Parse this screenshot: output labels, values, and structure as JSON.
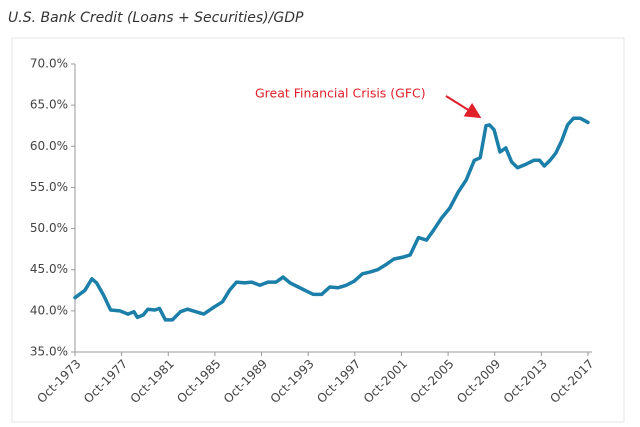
{
  "chart_data": {
    "type": "line",
    "title": "U.S. Bank Credit (Loans + Securities)/GDP",
    "annotation": "Great Financial Crisis (GFC)",
    "color": "#1b7fa9",
    "annotation_color": "#e0202a",
    "x": [
      1973.75,
      1974.6,
      1975.2,
      1975.6,
      1976.2,
      1976.8,
      1977.6,
      1978.3,
      1978.8,
      1979.1,
      1979.6,
      1980.0,
      1980.6,
      1981.0,
      1981.5,
      1982.1,
      1982.8,
      1983.4,
      1984.1,
      1984.8,
      1985.5,
      1986.4,
      1987.0,
      1987.6,
      1988.3,
      1988.9,
      1989.6,
      1990.3,
      1991.0,
      1991.6,
      1992.2,
      1992.9,
      1993.6,
      1994.2,
      1994.9,
      1995.6,
      1996.3,
      1997.0,
      1997.7,
      1998.4,
      1999.0,
      1999.7,
      2000.4,
      2001.1,
      2001.8,
      2002.5,
      2003.2,
      2003.9,
      2004.5,
      2005.2,
      2005.9,
      2006.6,
      2007.3,
      2008.0,
      2008.5,
      2009.0,
      2009.3,
      2009.7,
      2010.2,
      2010.7,
      2011.2,
      2011.7,
      2012.4,
      2013.1,
      2013.6,
      2014.0,
      2014.5,
      2015.0,
      2015.5,
      2016.0,
      2016.5,
      2017.1,
      2017.75
    ],
    "values": [
      41.6,
      42.5,
      43.9,
      43.4,
      41.9,
      40.1,
      40.0,
      39.6,
      39.9,
      39.2,
      39.5,
      40.2,
      40.1,
      40.3,
      38.9,
      38.9,
      39.9,
      40.2,
      39.9,
      39.6,
      40.3,
      41.1,
      42.5,
      43.5,
      43.4,
      43.5,
      43.1,
      43.5,
      43.5,
      44.1,
      43.4,
      42.9,
      42.4,
      42.0,
      42.0,
      42.9,
      42.8,
      43.1,
      43.6,
      44.5,
      44.7,
      45.0,
      45.6,
      46.3,
      46.5,
      46.8,
      48.9,
      48.6,
      49.8,
      51.3,
      52.5,
      54.4,
      55.9,
      58.3,
      58.6,
      62.5,
      62.6,
      62.0,
      59.3,
      59.8,
      58.1,
      57.4,
      57.8,
      58.3,
      58.3,
      57.6,
      58.3,
      59.2,
      60.7,
      62.6,
      63.4,
      63.4,
      62.9
    ],
    "xlim": [
      1973.75,
      2017.75
    ],
    "xticks": [
      {
        "value": 1973.75,
        "label": "Oct-1973"
      },
      {
        "value": 1977.75,
        "label": "Oct-1977"
      },
      {
        "value": 1981.75,
        "label": "Oct-1981"
      },
      {
        "value": 1985.75,
        "label": "Oct-1985"
      },
      {
        "value": 1989.75,
        "label": "Oct-1989"
      },
      {
        "value": 1993.75,
        "label": "Oct-1993"
      },
      {
        "value": 1997.75,
        "label": "Oct-1997"
      },
      {
        "value": 2001.75,
        "label": "Oct-2001"
      },
      {
        "value": 2005.75,
        "label": "Oct-2005"
      },
      {
        "value": 2009.75,
        "label": "Oct-2009"
      },
      {
        "value": 2013.75,
        "label": "Oct-2013"
      },
      {
        "value": 2017.75,
        "label": "Oct-2017"
      }
    ],
    "ylim": [
      35,
      70
    ],
    "yticks": [
      {
        "value": 35,
        "label": "35.0%"
      },
      {
        "value": 40,
        "label": "40.0%"
      },
      {
        "value": 45,
        "label": "45.0%"
      },
      {
        "value": 50,
        "label": "50.0%"
      },
      {
        "value": 55,
        "label": "55.0%"
      },
      {
        "value": 60,
        "label": "60.0%"
      },
      {
        "value": 65,
        "label": "65.0%"
      },
      {
        "value": 70,
        "label": "70.0%"
      }
    ],
    "grid": false
  }
}
